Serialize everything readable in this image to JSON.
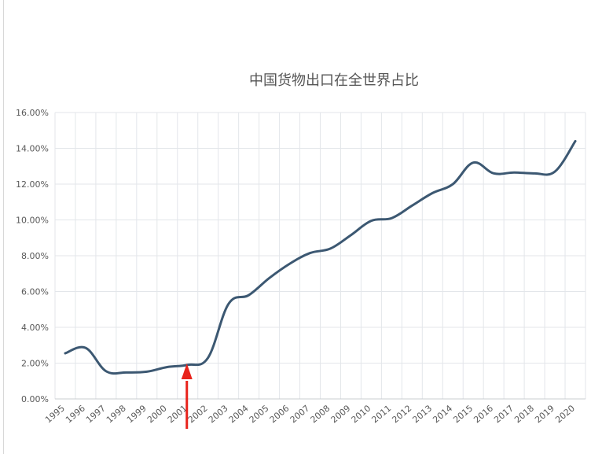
{
  "chart_data": {
    "type": "line",
    "title": "中国货物出口在全世界占比",
    "xlabel": "",
    "ylabel": "",
    "ylim": [
      0,
      16
    ],
    "y_ticks": [
      "0.00%",
      "2.00%",
      "4.00%",
      "6.00%",
      "8.00%",
      "10.00%",
      "12.00%",
      "14.00%",
      "16.00%"
    ],
    "categories": [
      "1995",
      "1996",
      "1997",
      "1998",
      "1999",
      "2000",
      "2001",
      "2002",
      "2003",
      "2004",
      "2005",
      "2006",
      "2007",
      "2008",
      "2009",
      "2010",
      "2011",
      "2012",
      "2013",
      "2014",
      "2015",
      "2016",
      "2017",
      "2018",
      "2019",
      "2020"
    ],
    "series": [
      {
        "values": [
          2.55,
          2.85,
          1.55,
          1.48,
          1.52,
          1.78,
          1.9,
          2.3,
          5.3,
          5.8,
          6.75,
          7.55,
          8.15,
          8.4,
          9.15,
          9.95,
          10.1,
          10.8,
          11.5,
          12.0,
          13.2,
          12.6,
          12.65,
          12.6,
          12.7,
          14.4
        ],
        "color": "#3c5872"
      }
    ],
    "annotation": {
      "type": "arrow",
      "category": "2001",
      "color": "#e8231b"
    },
    "grid": true
  }
}
